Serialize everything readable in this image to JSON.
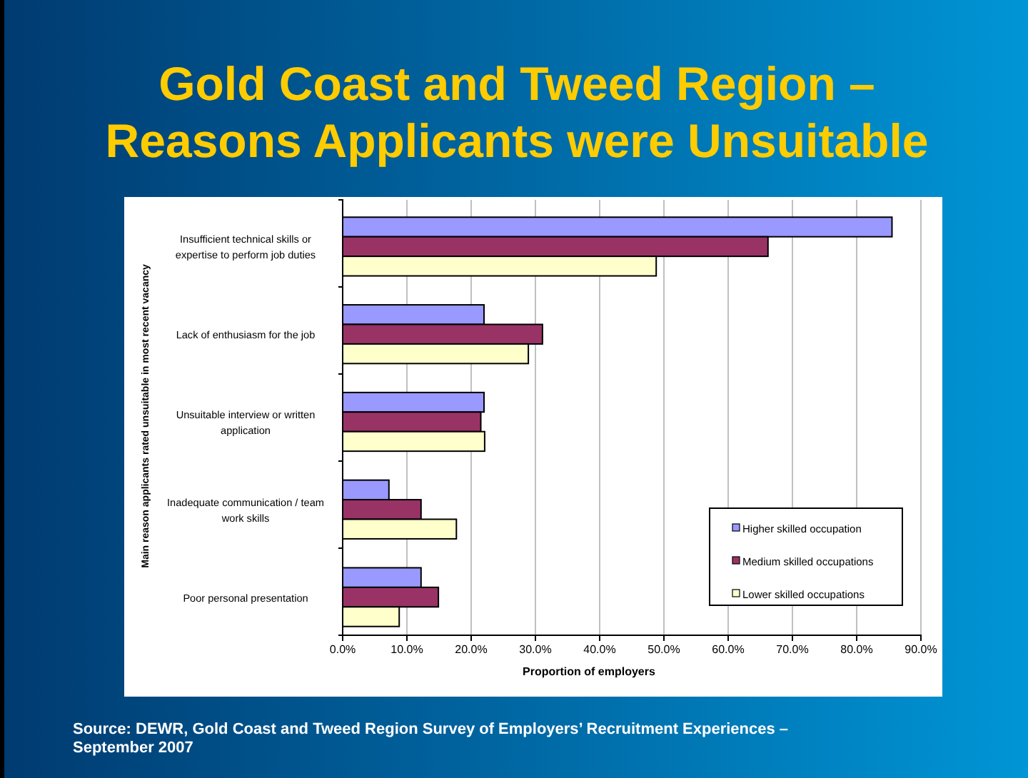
{
  "chart_data": {
    "type": "bar",
    "orientation": "horizontal",
    "title": "Gold Coast and Tweed Region – Reasons Applicants were Unsuitable",
    "categories": [
      "Insufficient technical skills or expertise to perform job duties",
      "Lack of enthusiasm for the job",
      "Unsuitable interview or written application",
      "Inadequate communication / team work skills",
      "Poor personal presentation"
    ],
    "series": [
      {
        "name": "Higher skilled occupation",
        "color": "#9999ff",
        "values": [
          85.5,
          22.0,
          22.0,
          7.2,
          12.2
        ]
      },
      {
        "name": "Medium skilled occupations",
        "color": "#993366",
        "values": [
          66.2,
          31.1,
          21.5,
          12.2,
          14.9
        ]
      },
      {
        "name": "Lower skilled occupations",
        "color": "#ffffcc",
        "values": [
          48.8,
          28.9,
          22.1,
          17.7,
          8.8
        ]
      }
    ],
    "xlim": [
      0,
      90
    ],
    "xticks": [
      {
        "value": 0,
        "label": "0.0%"
      },
      {
        "value": 10,
        "label": "10.0%"
      },
      {
        "value": 20,
        "label": "20.0%"
      },
      {
        "value": 30,
        "label": "30.0%"
      },
      {
        "value": 40,
        "label": "40.0%"
      },
      {
        "value": 50,
        "label": "50.0%"
      },
      {
        "value": 60,
        "label": "60.0%"
      },
      {
        "value": 70,
        "label": "70.0%"
      },
      {
        "value": 80,
        "label": "80.0%"
      },
      {
        "value": 90,
        "label": "90.0%"
      }
    ],
    "xlabel": "Proportion of employers",
    "ylabel": "Main reason applicants rated unsuitable in most recent vacancy",
    "grid": "x",
    "legend": "bottom right",
    "annotations": [
      "Source: DEWR, Gold Coast and Tweed Region Survey of Employers’ Recruitment Experiences – September 2007"
    ]
  }
}
